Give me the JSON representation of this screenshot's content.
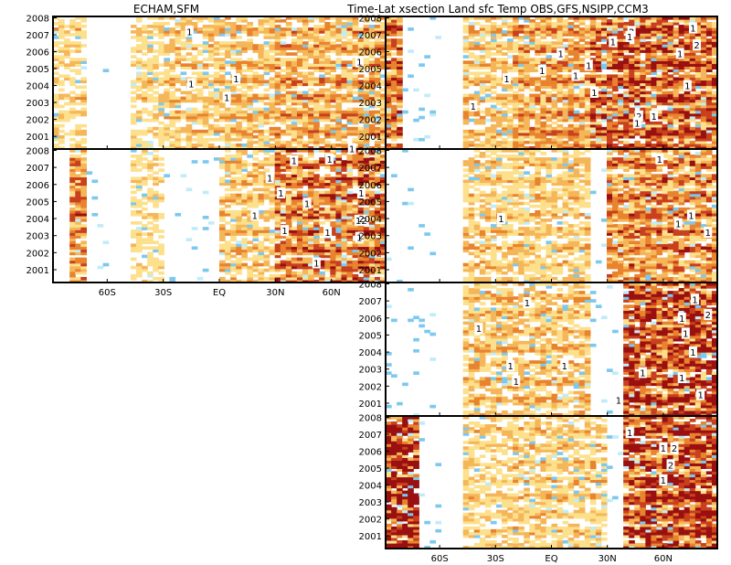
{
  "figure": {
    "title_left": "ECHAM,SFM",
    "title_right": "Time-Lat xsection Land sfc Temp   OBS,GFS,NSIPP,CCM3"
  },
  "chart_data": [
    {
      "type": "heatmap",
      "panel": "ECHAM",
      "x_ticks": [
        "60S",
        "30S",
        "EQ",
        "30N",
        "60N"
      ],
      "y_ticks": [
        "2001",
        "2002",
        "2003",
        "2004",
        "2005",
        "2006",
        "2007",
        "2008"
      ],
      "contour_labels": [
        {
          "label": "1",
          "lat": -16,
          "year": 2007.2
        },
        {
          "label": "1",
          "lat": 9,
          "year": 2004.4
        },
        {
          "label": "1",
          "lat": -15,
          "year": 2004.1
        },
        {
          "label": "1",
          "lat": 4,
          "year": 2003.3
        },
        {
          "label": "1",
          "lat": 75,
          "year": 2005.4
        }
      ]
    },
    {
      "type": "heatmap",
      "panel": "SFM",
      "x_ticks": [
        "60S",
        "30S",
        "EQ",
        "30N",
        "60N"
      ],
      "y_ticks": [
        "2001",
        "2002",
        "2003",
        "2004",
        "2005",
        "2006",
        "2007",
        "2008"
      ],
      "contour_labels": [
        {
          "label": "1",
          "lat": 71,
          "year": 2008.1
        },
        {
          "label": "1",
          "lat": 40,
          "year": 2007.4
        },
        {
          "label": "1",
          "lat": 59,
          "year": 2007.5
        },
        {
          "label": "1",
          "lat": 27,
          "year": 2006.4
        },
        {
          "label": "1",
          "lat": 33,
          "year": 2005.5
        },
        {
          "label": "1",
          "lat": 76,
          "year": 2005.5
        },
        {
          "label": "1",
          "lat": 47,
          "year": 2004.9
        },
        {
          "label": "1",
          "lat": 19,
          "year": 2004.2
        },
        {
          "label": "12",
          "lat": 76,
          "year": 2003.9
        },
        {
          "label": "1",
          "lat": 35,
          "year": 2003.3
        },
        {
          "label": "1",
          "lat": 58,
          "year": 2003.2
        },
        {
          "label": "1",
          "lat": 75,
          "year": 2002.9
        },
        {
          "label": "1",
          "lat": 52,
          "year": 2001.4
        }
      ]
    },
    {
      "type": "heatmap",
      "panel": "OBS",
      "x_ticks": [
        "60S",
        "30S",
        "EQ",
        "30N",
        "60N"
      ],
      "y_ticks": [
        "2001",
        "2002",
        "2003",
        "2004",
        "2005",
        "2006",
        "2007",
        "2008"
      ],
      "contour_labels": [
        {
          "label": "1",
          "lat": 76,
          "year": 2007.4
        },
        {
          "label": "2",
          "lat": 43,
          "year": 2007.2
        },
        {
          "label": "1",
          "lat": 42,
          "year": 2006.9
        },
        {
          "label": "1",
          "lat": 33,
          "year": 2006.6
        },
        {
          "label": "2",
          "lat": 78,
          "year": 2006.4
        },
        {
          "label": "1",
          "lat": 5,
          "year": 2005.9
        },
        {
          "label": "1",
          "lat": 69,
          "year": 2005.9
        },
        {
          "label": "1",
          "lat": 20,
          "year": 2005.2
        },
        {
          "label": "1",
          "lat": -5,
          "year": 2004.9
        },
        {
          "label": "1",
          "lat": 13,
          "year": 2004.6
        },
        {
          "label": "1",
          "lat": -24,
          "year": 2004.4
        },
        {
          "label": "1",
          "lat": 73,
          "year": 2004.0
        },
        {
          "label": "1",
          "lat": 23,
          "year": 2003.6
        },
        {
          "label": "1",
          "lat": -42,
          "year": 2002.8
        },
        {
          "label": "2",
          "lat": 47,
          "year": 2002.2
        },
        {
          "label": "1",
          "lat": 55,
          "year": 2002.2
        },
        {
          "label": "1",
          "lat": 46,
          "year": 2001.8
        }
      ]
    },
    {
      "type": "heatmap",
      "panel": "GFS",
      "x_ticks": [
        "60S",
        "30S",
        "EQ",
        "30N",
        "60N"
      ],
      "y_ticks": [
        "2001",
        "2002",
        "2003",
        "2004",
        "2005",
        "2006",
        "2007",
        "2008"
      ],
      "contour_labels": [
        {
          "label": "1",
          "lat": 58,
          "year": 2007.5
        },
        {
          "label": "1",
          "lat": 75,
          "year": 2004.2
        },
        {
          "label": "1",
          "lat": -27,
          "year": 2004.0
        },
        {
          "label": "1",
          "lat": 68,
          "year": 2003.7
        },
        {
          "label": "1",
          "lat": 84,
          "year": 2003.2
        }
      ]
    },
    {
      "type": "heatmap",
      "panel": "NSIPP",
      "x_ticks": [
        "60S",
        "30S",
        "EQ",
        "30N",
        "60N"
      ],
      "y_ticks": [
        "2001",
        "2002",
        "2003",
        "2004",
        "2005",
        "2006",
        "2007",
        "2008"
      ],
      "contour_labels": [
        {
          "label": "1",
          "lat": 77,
          "year": 2007.1
        },
        {
          "label": "1",
          "lat": -13,
          "year": 2006.9
        },
        {
          "label": "2",
          "lat": 84,
          "year": 2006.2
        },
        {
          "label": "1",
          "lat": 70,
          "year": 2006.0
        },
        {
          "label": "1",
          "lat": -39,
          "year": 2005.4
        },
        {
          "label": "1",
          "lat": 72,
          "year": 2005.1
        },
        {
          "label": "1",
          "lat": 76,
          "year": 2004.0
        },
        {
          "label": "1",
          "lat": -22,
          "year": 2003.2
        },
        {
          "label": "1",
          "lat": 7,
          "year": 2003.2
        },
        {
          "label": "1",
          "lat": 49,
          "year": 2002.8
        },
        {
          "label": "1",
          "lat": 70,
          "year": 2002.5
        },
        {
          "label": "1",
          "lat": -19,
          "year": 2002.3
        },
        {
          "label": "1",
          "lat": 80,
          "year": 2001.5
        },
        {
          "label": "1",
          "lat": 36,
          "year": 2001.2
        }
      ]
    },
    {
      "type": "heatmap",
      "panel": "CCM3",
      "x_ticks": [
        "60S",
        "30S",
        "EQ",
        "30N",
        "60N"
      ],
      "y_ticks": [
        "2001",
        "2002",
        "2003",
        "2004",
        "2005",
        "2006",
        "2007",
        "2008"
      ],
      "contour_labels": [
        {
          "label": "1",
          "lat": 42,
          "year": 2007.1
        },
        {
          "label": "1",
          "lat": 60,
          "year": 2006.2
        },
        {
          "label": "2",
          "lat": 66,
          "year": 2006.2
        },
        {
          "label": "2",
          "lat": 64,
          "year": 2005.2
        },
        {
          "label": "1",
          "lat": 60,
          "year": 2004.3
        }
      ]
    }
  ],
  "colors": {
    "pos1": "#fde08c",
    "pos2": "#f5b65a",
    "pos3": "#e8832e",
    "pos4": "#c8401d",
    "pos5": "#9a1010",
    "neg1": "#c0ecf8",
    "neg2": "#7cc8ee",
    "neg3": "#3a8fd0"
  }
}
